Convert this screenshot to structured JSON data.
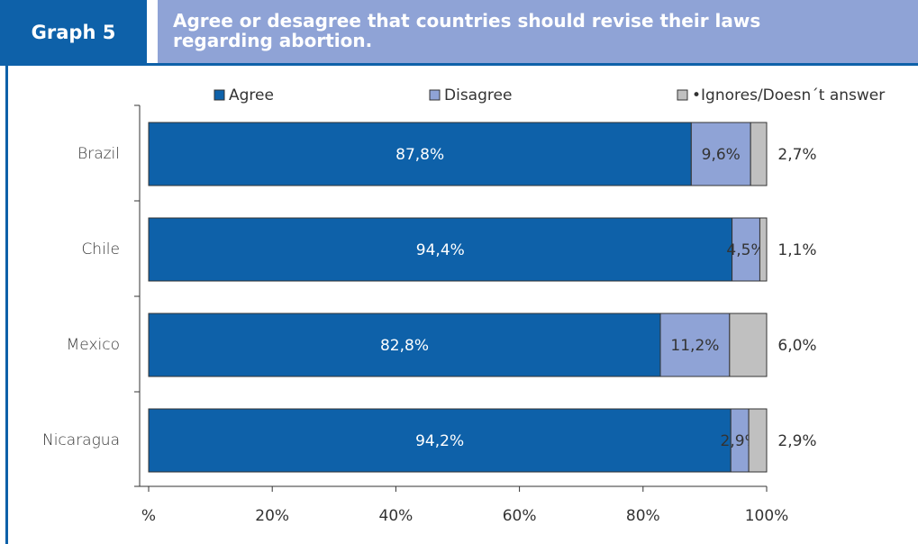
{
  "header": {
    "graph_label": "Graph 5",
    "title_line1": "Agree or desagree  that countries should revise their laws",
    "title_line2": "regarding abortion."
  },
  "colors": {
    "agree": "#0e61a9",
    "disagree": "#8fa3d6",
    "ignores": "#c0c0c0",
    "accent": "#0e61a9"
  },
  "chart_data": {
    "type": "bar",
    "orientation": "horizontal",
    "stacked": true,
    "categories": [
      "Brazil",
      "Chile",
      "Mexico",
      "Nicaragua"
    ],
    "series": [
      {
        "name": "Agree",
        "values": [
          87.8,
          94.4,
          82.8,
          94.2
        ],
        "labels": [
          "87,8%",
          "94,4%",
          "82,8%",
          "94,2%"
        ]
      },
      {
        "name": "Disagree",
        "values": [
          9.6,
          4.5,
          11.2,
          2.9
        ],
        "labels": [
          "9,6%",
          "4,5%",
          "11,2%",
          "2,9%"
        ]
      },
      {
        "name": "•Ignores/Doesn´t answer",
        "values": [
          2.7,
          1.1,
          6.0,
          2.9
        ],
        "labels": [
          "2,7%",
          "1,1%",
          "6,0%",
          "2,9%"
        ]
      }
    ],
    "xlim": [
      0,
      100
    ],
    "xticks": [
      0,
      20,
      40,
      60,
      80,
      100
    ],
    "xtick_labels": [
      "%",
      "20%",
      "40%",
      "60%",
      "80%",
      "100%"
    ],
    "legend_position": "top",
    "grid": false
  }
}
